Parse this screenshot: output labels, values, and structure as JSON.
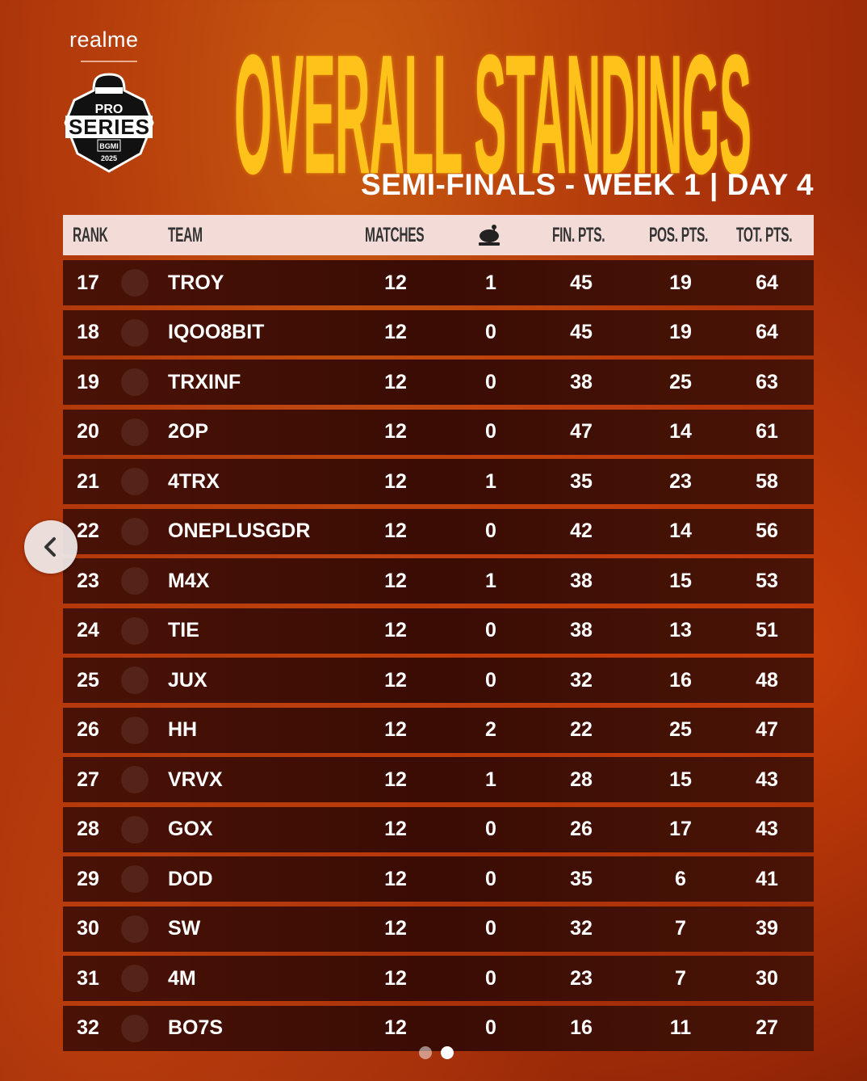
{
  "brand": "realme",
  "logo": {
    "text": "PRO SERIES BGMI 2025"
  },
  "title": "OVERALL STANDINGS",
  "subtitle": "SEMI-FINALS - WEEK 1 | DAY 4",
  "columns": [
    "RANK",
    "TEAM",
    "MATCHES",
    "chicken-dinner-icon",
    "FIN. PTS.",
    "POS. PTS.",
    "TOT. PTS."
  ],
  "rows": [
    {
      "rank": "17",
      "team": "TROY",
      "matches": "12",
      "wwcd": "1",
      "fin": "45",
      "pos": "19",
      "tot": "64"
    },
    {
      "rank": "18",
      "team": "IQOO8BIT",
      "matches": "12",
      "wwcd": "0",
      "fin": "45",
      "pos": "19",
      "tot": "64"
    },
    {
      "rank": "19",
      "team": "TRXINF",
      "matches": "12",
      "wwcd": "0",
      "fin": "38",
      "pos": "25",
      "tot": "63"
    },
    {
      "rank": "20",
      "team": "2OP",
      "matches": "12",
      "wwcd": "0",
      "fin": "47",
      "pos": "14",
      "tot": "61"
    },
    {
      "rank": "21",
      "team": "4TRX",
      "matches": "12",
      "wwcd": "1",
      "fin": "35",
      "pos": "23",
      "tot": "58"
    },
    {
      "rank": "22",
      "team": "ONEPLUSGDR",
      "matches": "12",
      "wwcd": "0",
      "fin": "42",
      "pos": "14",
      "tot": "56"
    },
    {
      "rank": "23",
      "team": "M4X",
      "matches": "12",
      "wwcd": "1",
      "fin": "38",
      "pos": "15",
      "tot": "53"
    },
    {
      "rank": "24",
      "team": "TIE",
      "matches": "12",
      "wwcd": "0",
      "fin": "38",
      "pos": "13",
      "tot": "51"
    },
    {
      "rank": "25",
      "team": "JUX",
      "matches": "12",
      "wwcd": "0",
      "fin": "32",
      "pos": "16",
      "tot": "48"
    },
    {
      "rank": "26",
      "team": "HH",
      "matches": "12",
      "wwcd": "2",
      "fin": "22",
      "pos": "25",
      "tot": "47"
    },
    {
      "rank": "27",
      "team": "VRVX",
      "matches": "12",
      "wwcd": "1",
      "fin": "28",
      "pos": "15",
      "tot": "43"
    },
    {
      "rank": "28",
      "team": "GOX",
      "matches": "12",
      "wwcd": "0",
      "fin": "26",
      "pos": "17",
      "tot": "43"
    },
    {
      "rank": "29",
      "team": "DOD",
      "matches": "12",
      "wwcd": "0",
      "fin": "35",
      "pos": "6",
      "tot": "41"
    },
    {
      "rank": "30",
      "team": "SW",
      "matches": "12",
      "wwcd": "0",
      "fin": "32",
      "pos": "7",
      "tot": "39"
    },
    {
      "rank": "31",
      "team": "4M",
      "matches": "12",
      "wwcd": "0",
      "fin": "23",
      "pos": "7",
      "tot": "30"
    },
    {
      "rank": "32",
      "team": "BO7S",
      "matches": "12",
      "wwcd": "0",
      "fin": "16",
      "pos": "11",
      "tot": "27"
    }
  ],
  "carousel": {
    "total": 2,
    "active": 2
  },
  "colors": {
    "title": "#ffc21a",
    "header_bg": "#f3dcd8",
    "row_bg": "#3a0c04"
  }
}
